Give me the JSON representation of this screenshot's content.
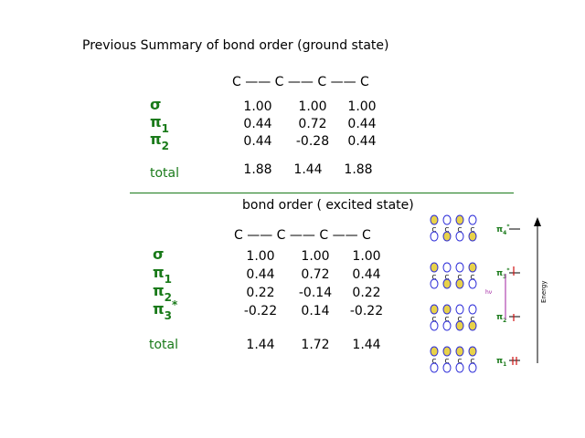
{
  "ground": {
    "title": "Previous Summary of bond order (ground state)",
    "chain": "C —— C —— C —— C",
    "rows": [
      {
        "label": "σ",
        "sub": "",
        "sup": "",
        "values": [
          "1.00",
          "1.00",
          "1.00"
        ]
      },
      {
        "label": "π",
        "sub": "1",
        "sup": "",
        "values": [
          "0.44",
          "0.72",
          "0.44"
        ]
      },
      {
        "label": "π",
        "sub": "2",
        "sup": "",
        "values": [
          "0.44",
          "-0.28",
          "0.44"
        ]
      }
    ],
    "total_label": "total",
    "total_values": [
      "1.88",
      "1.44",
      "1.88"
    ]
  },
  "excited": {
    "title": "bond order ( excited state)",
    "chain": "C —— C —— C —— C",
    "rows": [
      {
        "label": "σ",
        "sub": "",
        "sup": "",
        "values": [
          "1.00",
          "1.00",
          "1.00"
        ]
      },
      {
        "label": "π",
        "sub": "1",
        "sup": "",
        "values": [
          "0.44",
          "0.72",
          "0.44"
        ]
      },
      {
        "label": "π",
        "sub": "2",
        "sup": "",
        "values": [
          "0.22",
          "-0.14",
          "0.22"
        ]
      },
      {
        "label": "π",
        "sub": "3",
        "sup": "*",
        "values": [
          "-0.22",
          "0.14",
          "-0.22"
        ]
      }
    ],
    "total_label": "total",
    "total_values": [
      "1.44",
      "1.72",
      "1.44"
    ]
  },
  "diagram": {
    "axis_label": "Energy",
    "photon_label": "hν",
    "atom_label": "C",
    "levels": [
      {
        "label": "π",
        "sub": "4",
        "sup": "*"
      },
      {
        "label": "π",
        "sub": "3",
        "sup": "*"
      },
      {
        "label": "π",
        "sub": "2",
        "sup": ""
      },
      {
        "label": "π",
        "sub": "1",
        "sup": ""
      }
    ],
    "colors": {
      "lobe_filled": "#e8d24a",
      "lobe_outline": "#2a2ad8",
      "arrow": "#d01010",
      "excitation": "#a020a0"
    }
  }
}
